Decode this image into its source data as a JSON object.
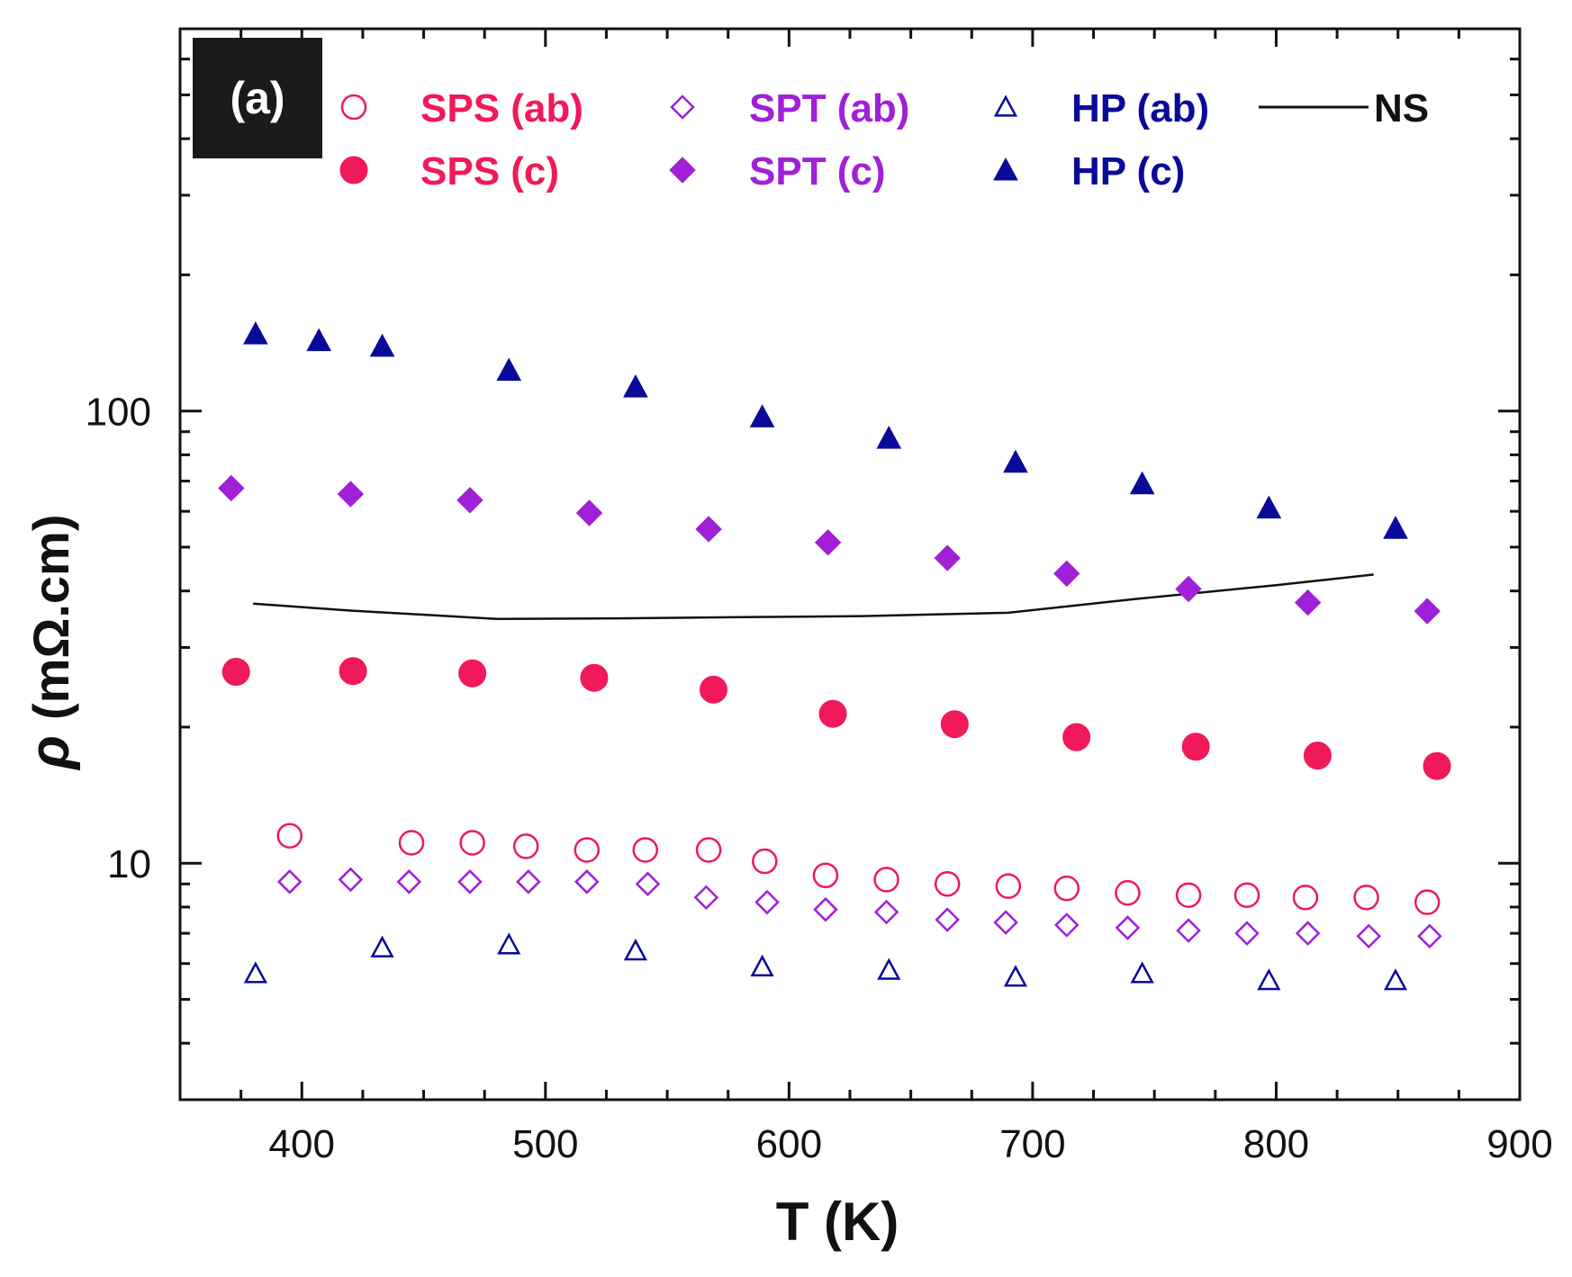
{
  "panel_label": "(a)",
  "colors": {
    "sps": "#f0195a",
    "spt": "#a020d8",
    "hp": "#0a0a9a",
    "ns": "#111111",
    "axis": "#111111"
  },
  "chart_data": {
    "type": "scatter",
    "title": "",
    "xlabel": "T (K)",
    "ylabel_symbol": "ρ",
    "ylabel_unit": "(mΩ.cm)",
    "xlim": [
      350,
      900
    ],
    "ylim": [
      3,
      700
    ],
    "yscale": "log",
    "x_ticks": [
      400,
      500,
      600,
      700,
      800,
      900
    ],
    "x_tick_labels": [
      "400",
      "500",
      "600",
      "700",
      "800",
      "900"
    ],
    "y_ticks": [
      10,
      100
    ],
    "y_tick_labels": [
      "10",
      "100"
    ],
    "legend_position": "top",
    "series": [
      {
        "name": "SPS (ab)",
        "marker": "circle-open",
        "color": "#f0195a",
        "x": [
          395,
          445,
          470,
          492,
          517,
          541,
          567,
          590,
          615,
          640,
          665,
          690,
          714,
          739,
          764,
          788,
          812,
          837,
          862
        ],
        "y": [
          11.5,
          11.1,
          11.1,
          10.9,
          10.7,
          10.7,
          10.7,
          10.1,
          9.4,
          9.2,
          9.0,
          8.9,
          8.8,
          8.6,
          8.5,
          8.5,
          8.4,
          8.4,
          8.2
        ]
      },
      {
        "name": "SPS (c)",
        "marker": "circle-filled",
        "color": "#f0195a",
        "x": [
          373,
          421,
          470,
          520,
          569,
          618,
          668,
          718,
          767,
          817,
          866
        ],
        "y": [
          26.5,
          26.6,
          26.3,
          25.7,
          24.2,
          21.4,
          20.3,
          19.0,
          18.1,
          17.3,
          16.4
        ]
      },
      {
        "name": "SPT (ab)",
        "marker": "diamond-open",
        "color": "#a020d8",
        "x": [
          395,
          420,
          444,
          469,
          493,
          517,
          542,
          566,
          591,
          615,
          640,
          665,
          689,
          714,
          739,
          764,
          788,
          813,
          838,
          863
        ],
        "y": [
          9.1,
          9.2,
          9.1,
          9.1,
          9.1,
          9.1,
          9.0,
          8.4,
          8.2,
          7.9,
          7.8,
          7.5,
          7.4,
          7.3,
          7.2,
          7.1,
          7.0,
          7.0,
          6.9,
          6.9
        ]
      },
      {
        "name": "SPT (c)",
        "marker": "diamond-filled",
        "color": "#a020d8",
        "x": [
          371,
          420,
          469,
          518,
          567,
          616,
          665,
          714,
          764,
          813,
          862
        ],
        "y": [
          67.5,
          65.5,
          63.5,
          59.5,
          54.8,
          51.2,
          47.3,
          43.7,
          40.4,
          37.7,
          36.1
        ]
      },
      {
        "name": "HP (ab)",
        "marker": "triangle-open",
        "color": "#0a0a9a",
        "x": [
          381,
          433,
          485,
          537,
          589,
          641,
          693,
          745,
          797,
          849
        ],
        "y": [
          5.7,
          6.5,
          6.6,
          6.4,
          5.9,
          5.8,
          5.6,
          5.7,
          5.5,
          5.5
        ]
      },
      {
        "name": "HP (c)",
        "marker": "triangle-filled",
        "color": "#0a0a9a",
        "x": [
          381,
          407,
          433,
          485,
          537,
          589,
          641,
          693,
          745,
          797,
          849
        ],
        "y": [
          148,
          143,
          139,
          123,
          113,
          97,
          87,
          77,
          69,
          61,
          55
        ]
      },
      {
        "name": "NS",
        "marker": "line",
        "color": "#111111",
        "x": [
          380,
          420,
          480,
          530,
          580,
          630,
          690,
          740,
          800,
          840
        ],
        "y": [
          37.5,
          36.2,
          34.7,
          34.8,
          35.0,
          35.2,
          35.8,
          38.3,
          41.2,
          43.5
        ]
      }
    ]
  }
}
